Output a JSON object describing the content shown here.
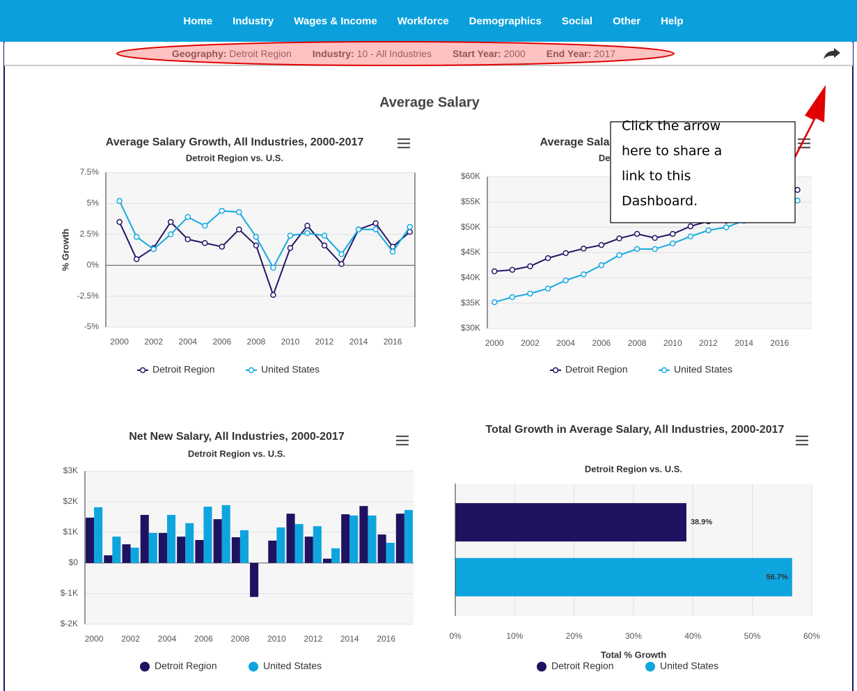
{
  "nav": [
    "Home",
    "Industry",
    "Wages & Income",
    "Workforce",
    "Demographics",
    "Social",
    "Other",
    "Help"
  ],
  "filters": [
    {
      "label": "Geography:",
      "value": "Detroit Region"
    },
    {
      "label": "Industry:",
      "value": "10 - All Industries"
    },
    {
      "label": "Start Year:",
      "value": "2000"
    },
    {
      "label": "End Year:",
      "value": "2017"
    }
  ],
  "page_title": "Average Salary",
  "callout": "Click the arrow here to share a link to this Dashboard.",
  "chart_data": [
    {
      "type": "line",
      "title": "Average Salary Growth, All Industries, 2000-2017",
      "subtitle": "Detroit Region vs. U.S.",
      "y_label": "% Growth",
      "x": [
        2000,
        2001,
        2002,
        2003,
        2004,
        2005,
        2006,
        2007,
        2008,
        2009,
        2010,
        2011,
        2012,
        2013,
        2014,
        2015,
        2016,
        2017
      ],
      "xlim": [
        1999.2,
        2017.3
      ],
      "xticks": [
        2000,
        2002,
        2004,
        2006,
        2008,
        2010,
        2012,
        2014,
        2016
      ],
      "ylim": [
        -5,
        7.5
      ],
      "yticks": [
        {
          "value": -5,
          "label": "-5%"
        },
        {
          "value": -2.5,
          "label": "-2.5%"
        },
        {
          "value": 0,
          "label": "0%"
        },
        {
          "value": 2.5,
          "label": "2.5%"
        },
        {
          "value": 5,
          "label": "5%"
        },
        {
          "value": 7.5,
          "label": "7.5%"
        }
      ],
      "grid": true,
      "series": [
        {
          "name": "Detroit Region",
          "color": "#241565",
          "values": [
            3.5,
            0.5,
            1.4,
            3.5,
            2.1,
            1.8,
            1.5,
            2.9,
            1.6,
            -2.4,
            1.4,
            3.2,
            1.6,
            0.1,
            2.9,
            3.4,
            1.5,
            2.7
          ]
        },
        {
          "name": "United States",
          "color": "#14a8e0",
          "values": [
            5.2,
            2.3,
            1.3,
            2.5,
            3.9,
            3.2,
            4.4,
            4.3,
            2.3,
            -0.2,
            2.4,
            2.6,
            2.4,
            0.9,
            2.9,
            2.9,
            1.1,
            3.1
          ]
        }
      ]
    },
    {
      "type": "line",
      "title": "Average Salary, All Industries, 2000-2017",
      "subtitle": "Detroit Region vs. U.S.",
      "x": [
        2000,
        2001,
        2002,
        2003,
        2004,
        2005,
        2006,
        2007,
        2008,
        2009,
        2010,
        2011,
        2012,
        2013,
        2014,
        2015,
        2016,
        2017
      ],
      "xlim": [
        1999.6,
        2017.8
      ],
      "xticks": [
        2000,
        2002,
        2004,
        2006,
        2008,
        2010,
        2012,
        2014,
        2016
      ],
      "ylim": [
        30000,
        60000
      ],
      "yticks": [
        {
          "value": 30000,
          "label": "$30K"
        },
        {
          "value": 35000,
          "label": "$35K"
        },
        {
          "value": 40000,
          "label": "$40K"
        },
        {
          "value": 45000,
          "label": "$45K"
        },
        {
          "value": 50000,
          "label": "$50K"
        },
        {
          "value": 55000,
          "label": "$55K"
        },
        {
          "value": 60000,
          "label": "$60K"
        }
      ],
      "grid": true,
      "series": [
        {
          "name": "Detroit Region",
          "color": "#241565",
          "values": [
            41300,
            41600,
            42300,
            43900,
            44900,
            45800,
            46500,
            47800,
            48700,
            47900,
            48700,
            50200,
            51200,
            51300,
            53000,
            54200,
            55900,
            57400
          ]
        },
        {
          "name": "United States",
          "color": "#14a8e0",
          "values": [
            35200,
            36200,
            36900,
            37900,
            39500,
            40700,
            42500,
            44500,
            45700,
            45700,
            46800,
            48200,
            49400,
            50000,
            51300,
            52900,
            54000,
            55300
          ]
        }
      ]
    },
    {
      "type": "bar",
      "title": "Net New Salary, All Industries, 2000-2017",
      "subtitle": "Detroit Region vs. U.S.",
      "x": [
        2000,
        2001,
        2002,
        2003,
        2004,
        2005,
        2006,
        2007,
        2008,
        2009,
        2010,
        2011,
        2012,
        2013,
        2014,
        2015,
        2016,
        2017
      ],
      "xlim": [
        1999.5,
        2017.5
      ],
      "xticks": [
        2000,
        2002,
        2004,
        2006,
        2008,
        2010,
        2012,
        2014,
        2016
      ],
      "ylim": [
        -2000,
        3000
      ],
      "yticks": [
        {
          "value": -2000,
          "label": "$-2K"
        },
        {
          "value": -1000,
          "label": "$-1K"
        },
        {
          "value": 0,
          "label": "$0"
        },
        {
          "value": 1000,
          "label": "$1K"
        },
        {
          "value": 2000,
          "label": "$2K"
        },
        {
          "value": 3000,
          "label": "$3K"
        }
      ],
      "grid": true,
      "series": [
        {
          "name": "Detroit Region",
          "color": "#1f1260",
          "values": [
            1480,
            250,
            610,
            1570,
            980,
            860,
            750,
            1430,
            840,
            -1110,
            730,
            1610,
            860,
            140,
            1590,
            1860,
            930,
            1610
          ]
        },
        {
          "name": "United States",
          "color": "#0ea5df",
          "values": [
            1820,
            860,
            500,
            980,
            1570,
            1300,
            1840,
            1890,
            1070,
            null,
            1160,
            1270,
            1200,
            480,
            1550,
            1550,
            660,
            1730
          ]
        }
      ]
    },
    {
      "type": "bar",
      "horizontal": true,
      "title": "Total Growth in Average Salary, All Industries, 2000-2017",
      "subtitle": "Detroit Region vs. U.S.",
      "x_label": "Total % Growth",
      "categories": [
        null
      ],
      "xlim": [
        0,
        60
      ],
      "xticks": [
        {
          "value": 0,
          "label": "0%"
        },
        {
          "value": 10,
          "label": "10%"
        },
        {
          "value": 20,
          "label": "20%"
        },
        {
          "value": 30,
          "label": "30%"
        },
        {
          "value": 40,
          "label": "40%"
        },
        {
          "value": 50,
          "label": "50%"
        },
        {
          "value": 60,
          "label": "60%"
        }
      ],
      "grid": true,
      "series": [
        {
          "name": "Detroit Region",
          "color": "#1f1260",
          "values": [
            38.9
          ],
          "value_labels": [
            "38.9%"
          ]
        },
        {
          "name": "United States",
          "color": "#0ea5df",
          "values": [
            56.7
          ],
          "value_labels": [
            "56.7%"
          ]
        }
      ]
    }
  ]
}
